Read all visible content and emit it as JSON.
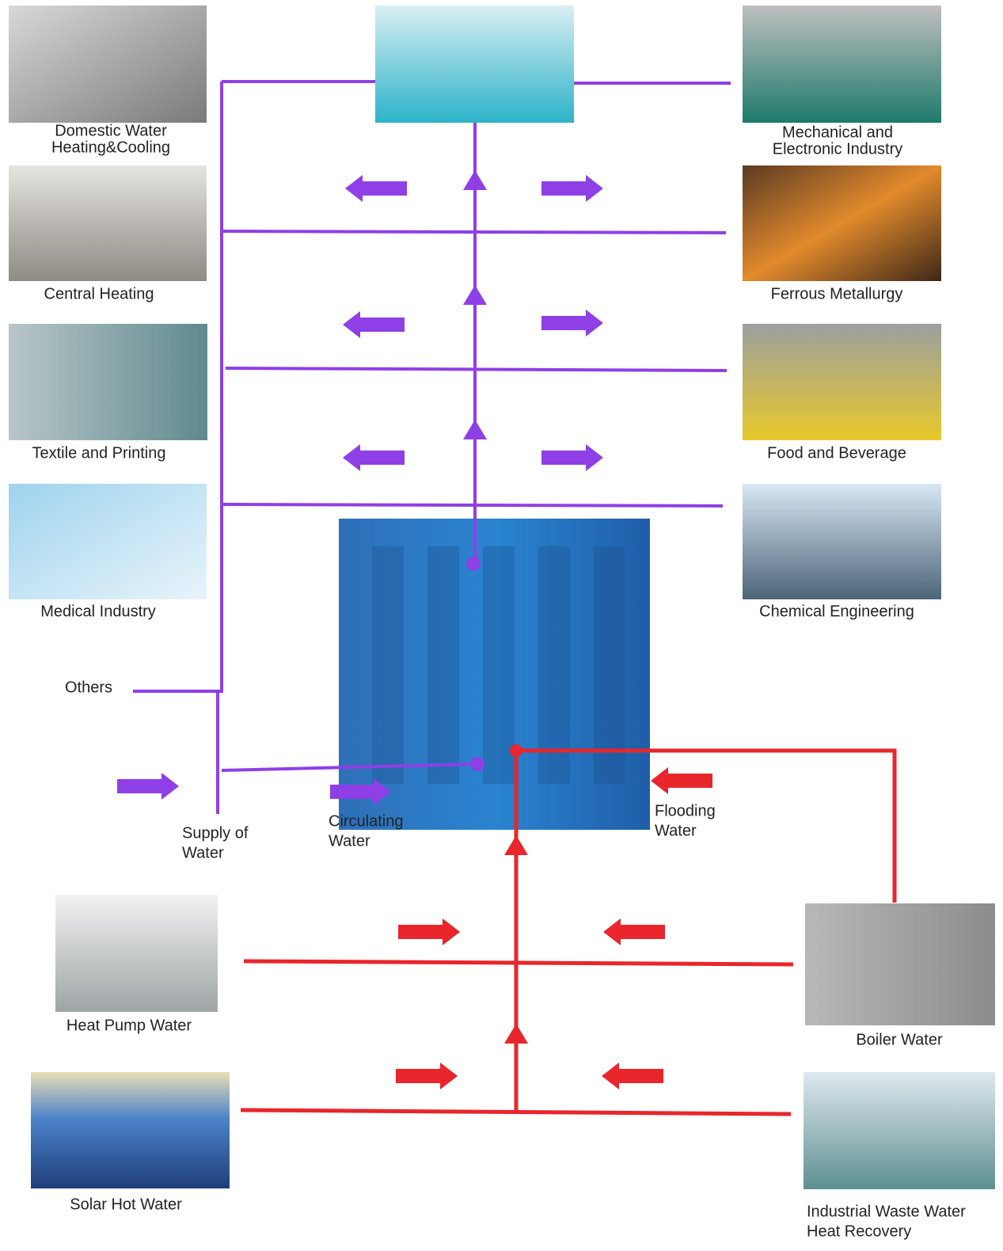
{
  "labels": [
    {
      "lines": [
        "Domestic Water",
        "Heating&Cooling"
      ]
    },
    {
      "lines": [
        "Central Heating"
      ]
    },
    {
      "lines": [
        "Textile and Printing"
      ]
    },
    {
      "lines": [
        "Medical Industry"
      ]
    },
    {
      "lines": [
        "Mechanical and",
        "Electronic Industry"
      ]
    },
    {
      "lines": [
        "Ferrous Metallurgy"
      ]
    },
    {
      "lines": [
        "Food and Beverage"
      ]
    },
    {
      "lines": [
        "Chemical Engineering"
      ]
    },
    {
      "lines": [
        "Others"
      ]
    },
    {
      "lines": [
        "Supply of",
        "Water"
      ]
    },
    {
      "lines": [
        "Circulating",
        "Water"
      ]
    },
    {
      "lines": [
        "Flooding",
        "Water"
      ]
    },
    {
      "lines": [
        "Heat Pump Water"
      ]
    },
    {
      "lines": [
        "Solar Hot Water"
      ]
    },
    {
      "lines": [
        "Boiler Water"
      ]
    },
    {
      "lines": [
        "Industrial Waste Water",
        "Heat Recovery"
      ]
    }
  ]
}
